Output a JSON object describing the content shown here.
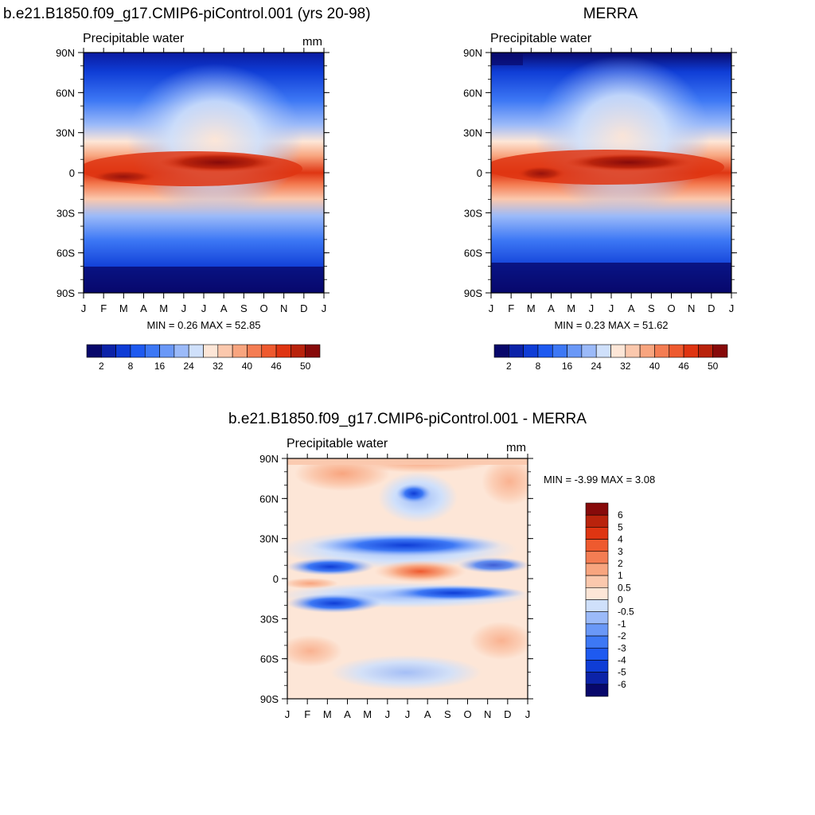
{
  "panels": [
    {
      "title": "b.e21.B1850.f09_g17.CMIP6-piControl.001 (yrs 20-98)",
      "subtitle": "Precipitable water",
      "units": "mm",
      "stats": "MIN =   0.26 MAX =  52.85"
    },
    {
      "title": "MERRA",
      "subtitle": "Precipitable water",
      "units": "",
      "stats": "MIN =   0.23 MAX =  51.62"
    },
    {
      "title": "b.e21.B1850.f09_g17.CMIP6-piControl.001 - MERRA",
      "subtitle": "Precipitable water",
      "units": "mm",
      "stats": "MIN =  -3.99 MAX =   3.08"
    }
  ],
  "chart_data": [
    {
      "type": "heatmap",
      "title": "b.e21.B1850.f09_g17.CMIP6-piControl.001 (yrs 20-98)",
      "subtitle": "Precipitable water",
      "units": "mm",
      "x_tick_labels": [
        "J",
        "F",
        "M",
        "A",
        "M",
        "J",
        "J",
        "A",
        "S",
        "O",
        "N",
        "D",
        "J"
      ],
      "y_tick_labels": [
        "90N",
        "60N",
        "30N",
        "0",
        "30S",
        "60S",
        "90S"
      ],
      "xlim": [
        0,
        12
      ],
      "ylim": [
        -90,
        90
      ],
      "min": 0.26,
      "max": 52.85,
      "colorbar_labels": [
        "2",
        "8",
        "16",
        "24",
        "32",
        "40",
        "46",
        "50"
      ],
      "colorbar_colors": [
        "#08086b",
        "#0c23a8",
        "#0f3dd6",
        "#1e5af0",
        "#3d78f5",
        "#6a98f7",
        "#9bbaf9",
        "#cfe0fb",
        "#fde6d7",
        "#fbc8ad",
        "#f8a57f",
        "#f47d53",
        "#ee5a2f",
        "#df3512",
        "#b9230c",
        "#870a0a"
      ]
    },
    {
      "type": "heatmap",
      "title": "MERRA",
      "subtitle": "Precipitable water",
      "units": "",
      "x_tick_labels": [
        "J",
        "F",
        "M",
        "A",
        "M",
        "J",
        "J",
        "A",
        "S",
        "O",
        "N",
        "D",
        "J"
      ],
      "y_tick_labels": [
        "90N",
        "60N",
        "30N",
        "0",
        "30S",
        "60S",
        "90S"
      ],
      "xlim": [
        0,
        12
      ],
      "ylim": [
        -90,
        90
      ],
      "min": 0.23,
      "max": 51.62,
      "colorbar_labels": [
        "2",
        "8",
        "16",
        "24",
        "32",
        "40",
        "46",
        "50"
      ],
      "colorbar_colors": [
        "#08086b",
        "#0c23a8",
        "#0f3dd6",
        "#1e5af0",
        "#3d78f5",
        "#6a98f7",
        "#9bbaf9",
        "#cfe0fb",
        "#fde6d7",
        "#fbc8ad",
        "#f8a57f",
        "#f47d53",
        "#ee5a2f",
        "#df3512",
        "#b9230c",
        "#870a0a"
      ]
    },
    {
      "type": "heatmap",
      "title": "b.e21.B1850.f09_g17.CMIP6-piControl.001 - MERRA",
      "subtitle": "Precipitable water",
      "units": "mm",
      "x_tick_labels": [
        "J",
        "F",
        "M",
        "A",
        "M",
        "J",
        "J",
        "A",
        "S",
        "O",
        "N",
        "D",
        "J"
      ],
      "y_tick_labels": [
        "90N",
        "60N",
        "30N",
        "0",
        "30S",
        "60S",
        "90S"
      ],
      "xlim": [
        0,
        12
      ],
      "ylim": [
        -90,
        90
      ],
      "min": -3.99,
      "max": 3.08,
      "colorbar_labels": [
        "6",
        "5",
        "4",
        "3",
        "2",
        "1",
        "0.5",
        "0",
        "-0.5",
        "-1",
        "-2",
        "-3",
        "-4",
        "-5",
        "-6"
      ],
      "colorbar_colors": [
        "#870a0a",
        "#b9230c",
        "#df3512",
        "#ee5a2f",
        "#f47d53",
        "#f8a57f",
        "#fbc8ad",
        "#fde6d7",
        "#cfe0fb",
        "#9bbaf9",
        "#6a98f7",
        "#3d78f5",
        "#1e5af0",
        "#0f3dd6",
        "#0c23a8",
        "#08086b"
      ]
    }
  ]
}
